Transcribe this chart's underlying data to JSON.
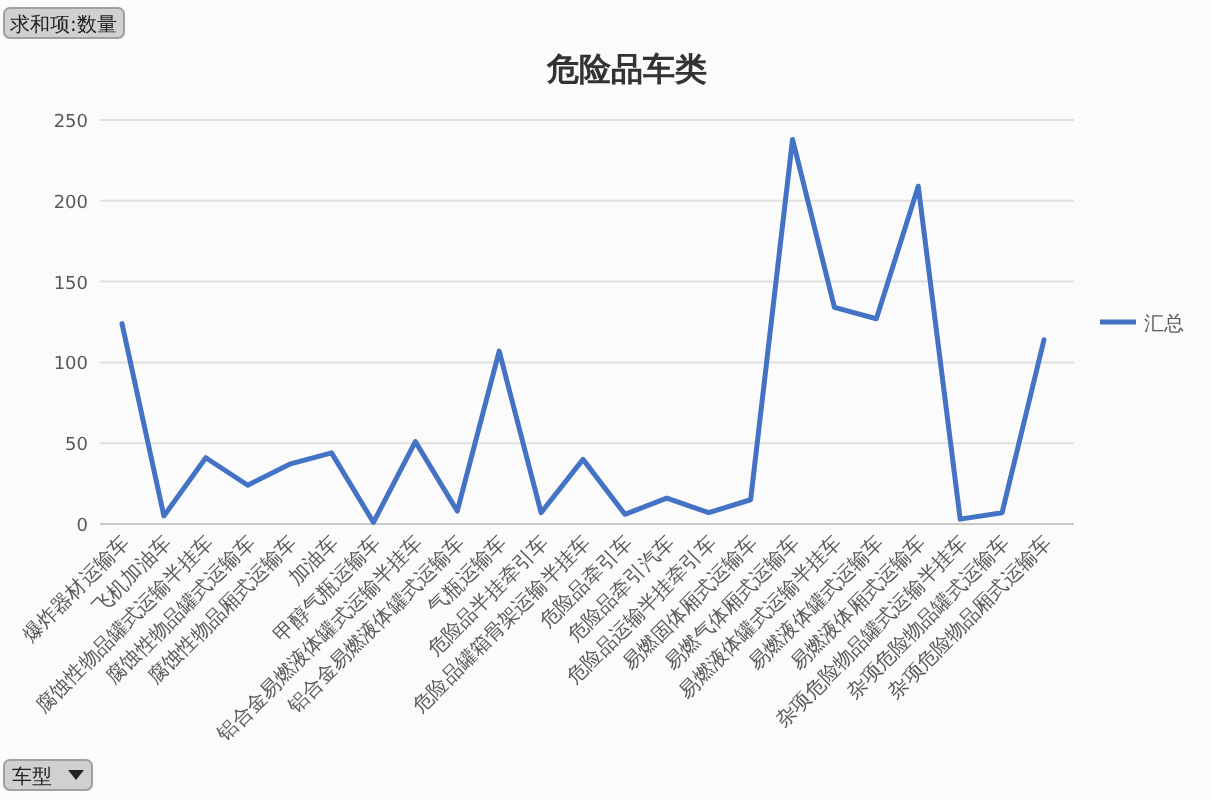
{
  "chart_data": {
    "type": "line",
    "title": "危险品车类",
    "categories": [
      "爆炸器材运输车",
      "飞机加油车",
      "腐蚀性物品罐式运输半挂车",
      "腐蚀性物品罐式运输车",
      "腐蚀性物品厢式运输车",
      "加油车",
      "甲醇气瓶运输车",
      "铝合金易燃液体罐式运输半挂车",
      "铝合金易燃液体罐式运输车",
      "气瓶运输车",
      "危险品半挂牵引车",
      "危险品罐箱骨架运输半挂车",
      "危险品牵引车",
      "危险品牵引汽车",
      "危险品运输半挂牵引车",
      "易燃固体厢式运输车",
      "易燃气体厢式运输车",
      "易燃液体罐式运输半挂车",
      "易燃液体罐式运输车",
      "易燃液体厢式运输车",
      "杂项危险物品罐式运输半挂车",
      "杂项危险物品罐式运输车",
      "杂项危险物品厢式运输车"
    ],
    "series": [
      {
        "name": "汇总",
        "color": "#4472c4",
        "values": [
          124,
          5,
          41,
          24,
          37,
          44,
          1,
          51,
          8,
          107,
          7,
          40,
          6,
          16,
          7,
          15,
          238,
          134,
          127,
          209,
          3,
          7,
          114
        ]
      }
    ],
    "ylim": [
      0,
      250
    ],
    "yticks": [
      0,
      50,
      100,
      150,
      200,
      250
    ],
    "grid": "y",
    "legend": "right",
    "marker": "none",
    "line_style": "solid",
    "annotations": [
      "求和项:数量",
      "车型"
    ]
  }
}
